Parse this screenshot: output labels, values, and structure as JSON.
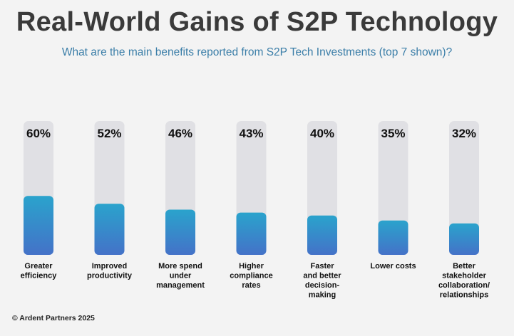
{
  "header": {
    "title": "Real-World Gains of S2P Technology",
    "subtitle": "What are the main benefits reported from S2P Tech Investments (top 7 shown)?"
  },
  "footer": {
    "copyright": "© Ardent Partners 2025"
  },
  "colors": {
    "track": "#e0e0e4",
    "bar_top": "#2aa3cc",
    "bar_bottom": "#4472c8",
    "label_text": "#111111"
  },
  "chart_data": {
    "type": "bar",
    "title": "Real-World Gains of S2P Technology",
    "subtitle": "What are the main benefits reported from S2P Tech Investments (top 7 shown)?",
    "unit": "%",
    "ylim": [
      0,
      100
    ],
    "grid": false,
    "categories": [
      [
        "Greater",
        "efficiency"
      ],
      [
        "Improved",
        "productivity"
      ],
      [
        "More spend",
        "under",
        "management"
      ],
      [
        "Higher",
        "compliance",
        "rates"
      ],
      [
        "Faster",
        "and better",
        "decision-",
        "making"
      ],
      [
        "Lower costs"
      ],
      [
        "Better",
        "stakeholder",
        "collaboration/",
        "relationships"
      ]
    ],
    "values": [
      60,
      52,
      46,
      43,
      40,
      35,
      32
    ],
    "value_labels": [
      "60%",
      "52%",
      "46%",
      "43%",
      "40%",
      "35%",
      "32%"
    ]
  }
}
